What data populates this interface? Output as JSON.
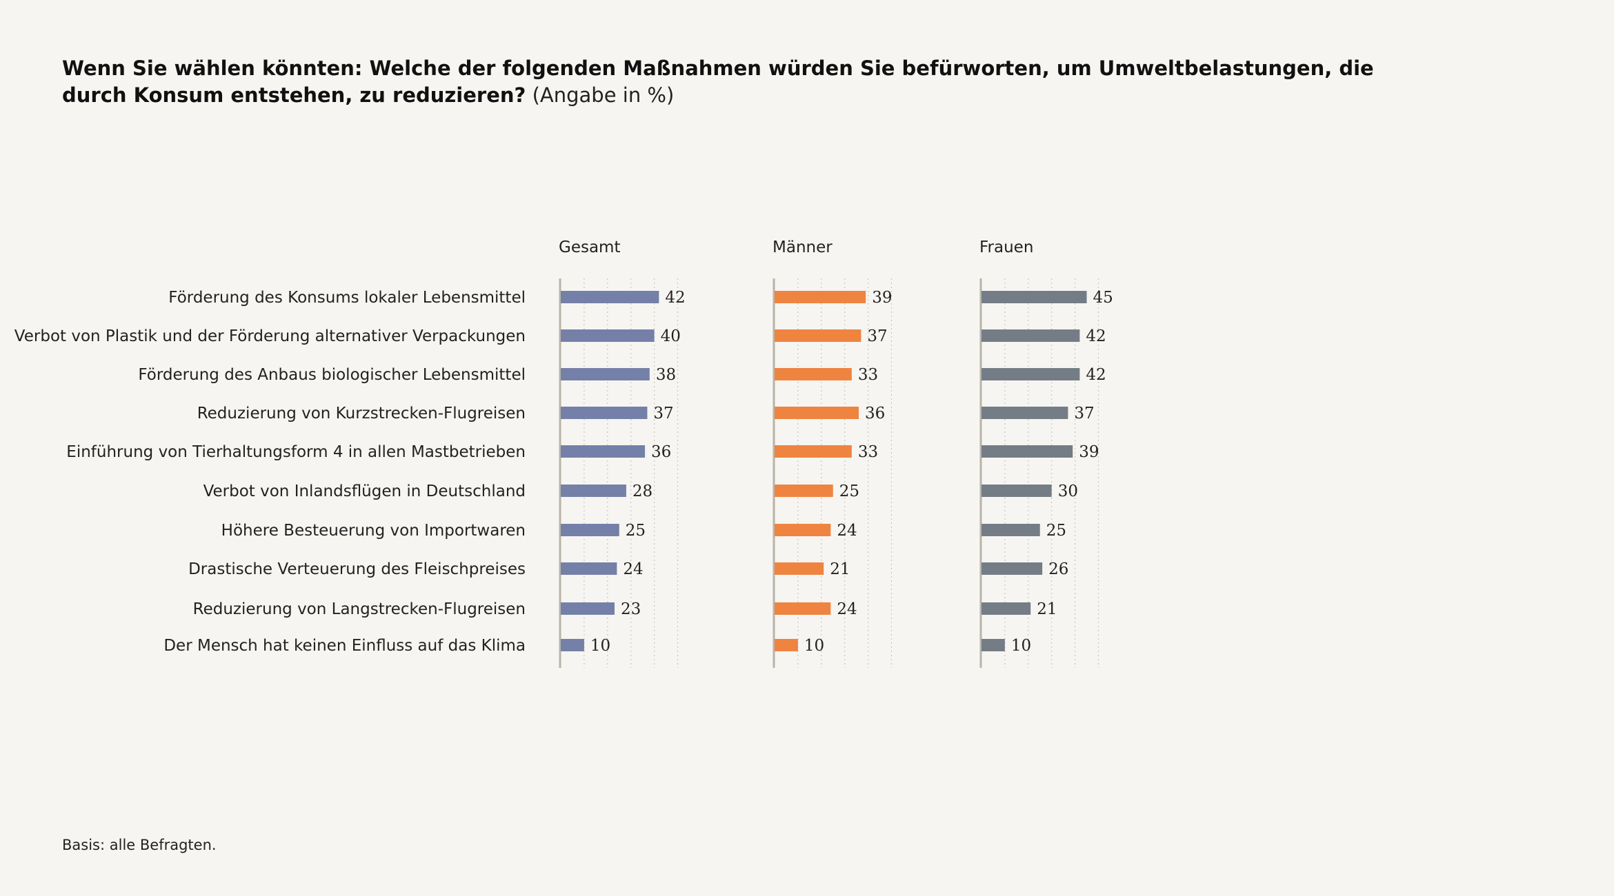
{
  "title": {
    "main": "Wenn Sie wählen könnten: Welche der folgenden Maßnahmen würden Sie befürworten, um Umweltbelastungen, die durch Konsum entstehen, zu reduzieren?",
    "unit": "(Angabe in %)"
  },
  "footnote": "Basis: alle Befragten.",
  "chart_data": {
    "type": "bar",
    "orientation": "horizontal",
    "categories": [
      "Förderung des Konsums lokaler Lebensmittel",
      "Verbot von Plastik und der Förderung alternativer Verpackungen",
      "Förderung des Anbaus biologischer Lebensmittel",
      "Reduzierung von Kurzstrecken-Flugreisen",
      "Einführung von Tierhaltungsform 4 in allen Mastbetrieben",
      "Verbot von Inlandsflügen in Deutschland",
      "Höhere Besteuerung von Importwaren",
      "Drastische Verteuerung des Fleischpreises",
      "Reduzierung von Langstrecken-Flugreisen",
      "Der Mensch hat keinen Einfluss auf das Klima"
    ],
    "series": [
      {
        "name": "Gesamt",
        "color": "#7480a8",
        "values": [
          42,
          40,
          38,
          37,
          36,
          28,
          25,
          24,
          23,
          10
        ]
      },
      {
        "name": "Männer",
        "color": "#ee8440",
        "values": [
          39,
          37,
          33,
          36,
          33,
          25,
          24,
          21,
          24,
          10
        ]
      },
      {
        "name": "Frauen",
        "color": "#747d86",
        "values": [
          45,
          42,
          42,
          37,
          39,
          30,
          25,
          26,
          21,
          10
        ]
      }
    ],
    "xlim": [
      0,
      50
    ],
    "grid": true
  }
}
